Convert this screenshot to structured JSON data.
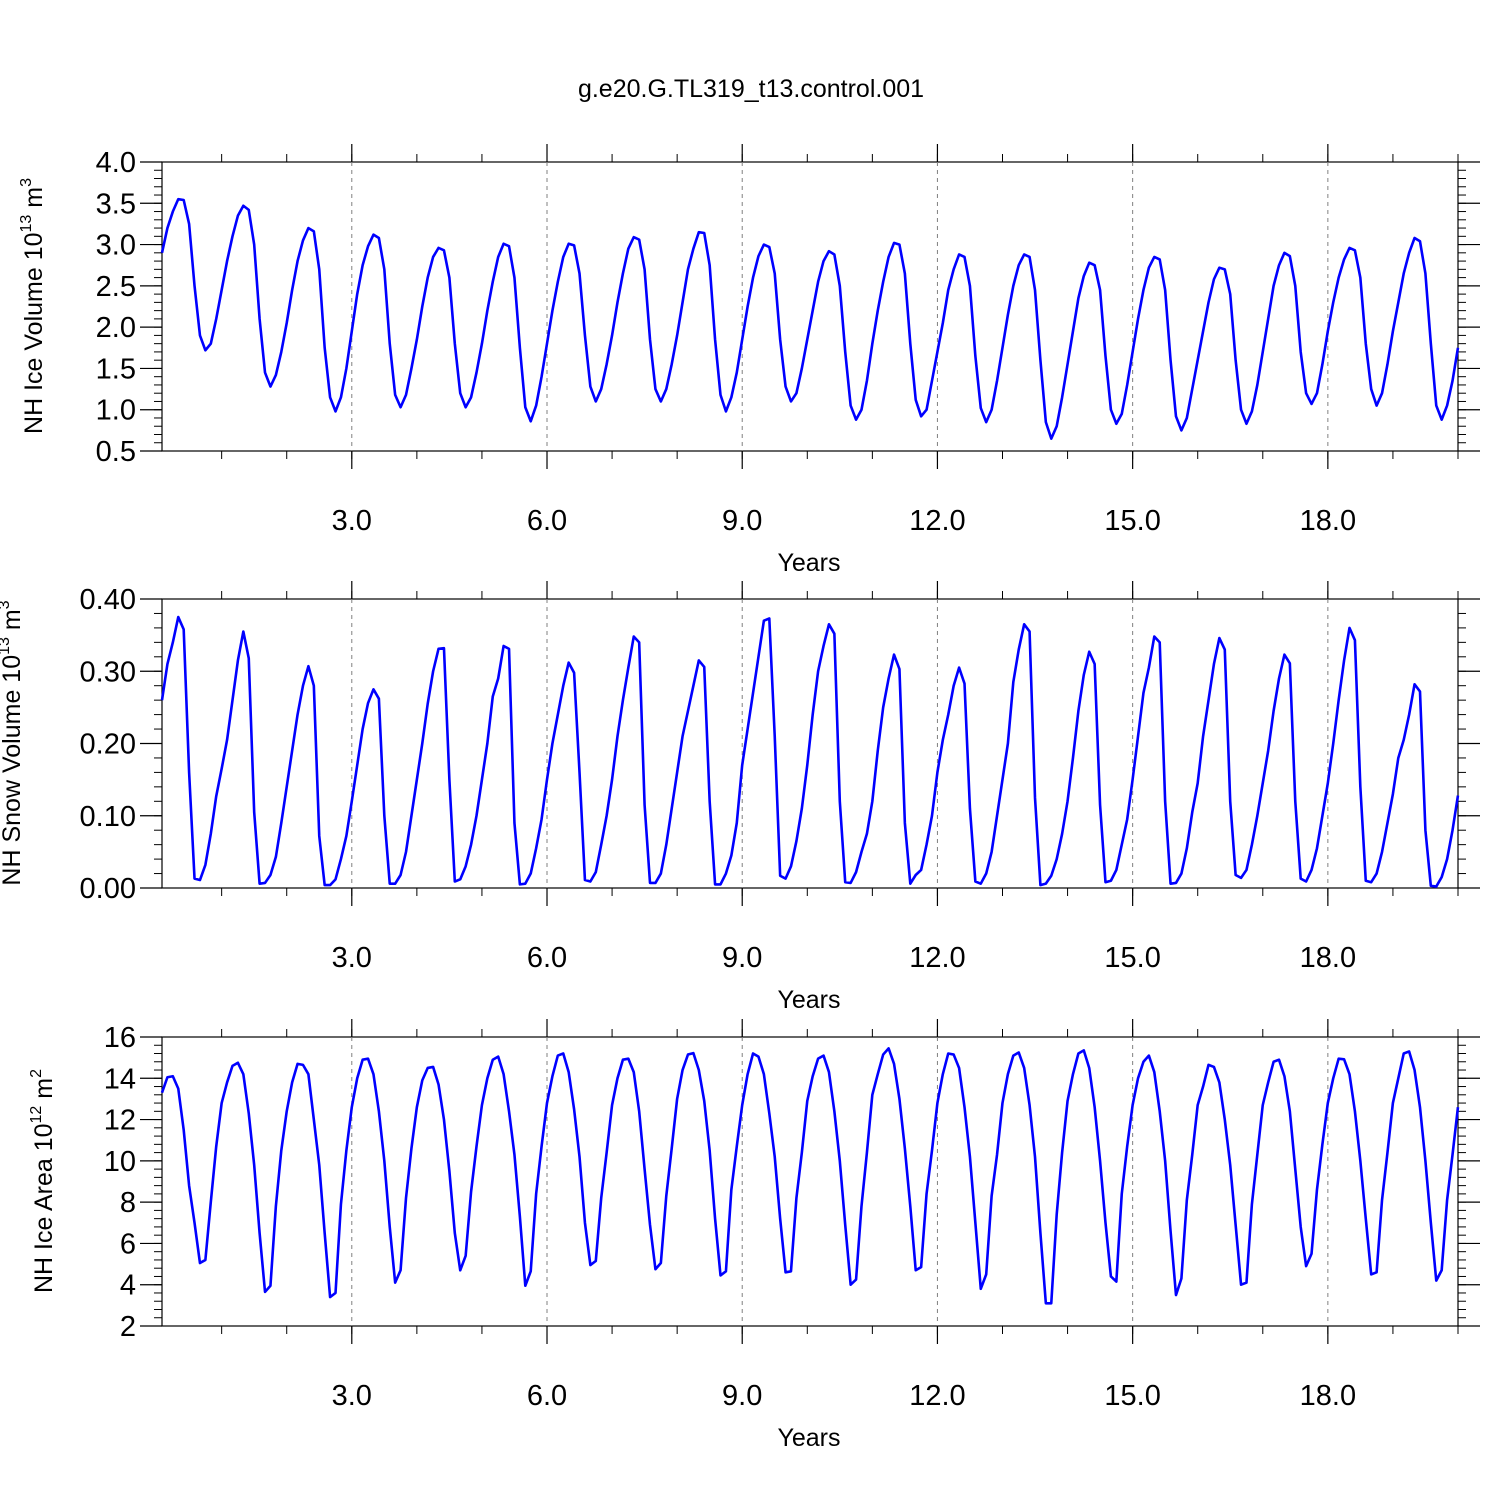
{
  "title": "g.e20.G.TL319_t13.control.001",
  "colors": {
    "series": "#0000ff",
    "axis": "#000000",
    "grid": "#808080"
  },
  "chart_data": [
    {
      "type": "line",
      "xlabel": "Years",
      "ylabel": {
        "text": "NH Ice Volume 10",
        "sup1": "13",
        "unit": " m",
        "sup2": "3"
      },
      "xlim": [
        0.0833,
        20.0
      ],
      "ylim": [
        0.5,
        4.0
      ],
      "xticks": [
        3.0,
        6.0,
        9.0,
        12.0,
        15.0,
        18.0
      ],
      "xtick_labels": [
        "3.0",
        "6.0",
        "9.0",
        "12.0",
        "15.0",
        "18.0"
      ],
      "yticks": [
        0.5,
        1.0,
        1.5,
        2.0,
        2.5,
        3.0,
        3.5,
        4.0
      ],
      "ytick_labels": [
        "0.5",
        "1.0",
        "1.5",
        "2.0",
        "2.5",
        "3.0",
        "3.5",
        "4.0"
      ],
      "grid": "vertical dashed at major x ticks",
      "x_start": 0.0833,
      "x_step": 0.08333,
      "values": [
        2.9,
        3.2,
        3.4,
        3.55,
        3.54,
        3.25,
        2.5,
        1.9,
        1.72,
        1.8,
        2.1,
        2.45,
        2.8,
        3.1,
        3.35,
        3.47,
        3.42,
        3.0,
        2.1,
        1.45,
        1.28,
        1.42,
        1.7,
        2.05,
        2.45,
        2.8,
        3.05,
        3.2,
        3.16,
        2.7,
        1.75,
        1.15,
        0.98,
        1.15,
        1.5,
        1.95,
        2.4,
        2.75,
        2.98,
        3.12,
        3.08,
        2.7,
        1.8,
        1.18,
        1.03,
        1.18,
        1.5,
        1.85,
        2.25,
        2.6,
        2.85,
        2.96,
        2.93,
        2.6,
        1.8,
        1.2,
        1.03,
        1.15,
        1.45,
        1.8,
        2.2,
        2.55,
        2.85,
        3.01,
        2.98,
        2.6,
        1.75,
        1.03,
        0.86,
        1.05,
        1.4,
        1.8,
        2.2,
        2.55,
        2.85,
        3.01,
        2.99,
        2.65,
        1.9,
        1.28,
        1.1,
        1.25,
        1.55,
        1.9,
        2.3,
        2.65,
        2.95,
        3.09,
        3.06,
        2.7,
        1.85,
        1.25,
        1.1,
        1.25,
        1.55,
        1.9,
        2.3,
        2.7,
        2.95,
        3.15,
        3.14,
        2.75,
        1.85,
        1.18,
        0.98,
        1.15,
        1.45,
        1.85,
        2.25,
        2.6,
        2.86,
        3.0,
        2.97,
        2.65,
        1.85,
        1.28,
        1.1,
        1.2,
        1.5,
        1.85,
        2.2,
        2.55,
        2.8,
        2.92,
        2.88,
        2.5,
        1.7,
        1.05,
        0.88,
        1.0,
        1.35,
        1.8,
        2.2,
        2.55,
        2.85,
        3.02,
        3.0,
        2.65,
        1.8,
        1.12,
        0.92,
        1.0,
        1.35,
        1.7,
        2.05,
        2.45,
        2.7,
        2.88,
        2.85,
        2.5,
        1.65,
        1.02,
        0.85,
        1.0,
        1.35,
        1.75,
        2.15,
        2.5,
        2.75,
        2.88,
        2.85,
        2.45,
        1.6,
        0.85,
        0.65,
        0.8,
        1.15,
        1.55,
        1.95,
        2.35,
        2.62,
        2.78,
        2.75,
        2.45,
        1.65,
        1.0,
        0.83,
        0.95,
        1.3,
        1.7,
        2.1,
        2.45,
        2.72,
        2.85,
        2.82,
        2.45,
        1.6,
        0.92,
        0.75,
        0.9,
        1.25,
        1.6,
        1.95,
        2.3,
        2.58,
        2.72,
        2.7,
        2.4,
        1.6,
        1.0,
        0.83,
        0.98,
        1.3,
        1.7,
        2.1,
        2.5,
        2.75,
        2.9,
        2.86,
        2.5,
        1.7,
        1.2,
        1.07,
        1.2,
        1.55,
        1.95,
        2.3,
        2.6,
        2.82,
        2.96,
        2.93,
        2.6,
        1.8,
        1.25,
        1.05,
        1.2,
        1.55,
        1.95,
        2.3,
        2.65,
        2.9,
        3.08,
        3.04,
        2.65,
        1.8,
        1.05,
        0.88,
        1.05,
        1.35,
        1.75
      ]
    },
    {
      "type": "line",
      "xlabel": "Years",
      "ylabel": {
        "text": "NH Snow Volume 10",
        "sup1": "13",
        "unit": " m",
        "sup2": "3"
      },
      "xlim": [
        0.0833,
        20.0
      ],
      "ylim": [
        0.0,
        0.4
      ],
      "xticks": [
        3.0,
        6.0,
        9.0,
        12.0,
        15.0,
        18.0
      ],
      "xtick_labels": [
        "3.0",
        "6.0",
        "9.0",
        "12.0",
        "15.0",
        "18.0"
      ],
      "yticks": [
        0.0,
        0.1,
        0.2,
        0.3,
        0.4
      ],
      "ytick_labels": [
        "0.00",
        "0.10",
        "0.20",
        "0.30",
        "0.40"
      ],
      "grid": "vertical dashed at major x ticks",
      "x_start": 0.0833,
      "x_step": 0.08333,
      "values": [
        0.26,
        0.31,
        0.34,
        0.375,
        0.358,
        0.16,
        0.013,
        0.011,
        0.032,
        0.075,
        0.127,
        0.165,
        0.205,
        0.26,
        0.315,
        0.355,
        0.318,
        0.105,
        0.006,
        0.007,
        0.018,
        0.043,
        0.09,
        0.14,
        0.19,
        0.24,
        0.28,
        0.307,
        0.28,
        0.072,
        0.004,
        0.004,
        0.012,
        0.04,
        0.072,
        0.12,
        0.17,
        0.22,
        0.256,
        0.275,
        0.262,
        0.1,
        0.006,
        0.006,
        0.018,
        0.05,
        0.1,
        0.15,
        0.2,
        0.255,
        0.3,
        0.331,
        0.332,
        0.15,
        0.009,
        0.012,
        0.03,
        0.06,
        0.1,
        0.15,
        0.2,
        0.265,
        0.29,
        0.335,
        0.331,
        0.09,
        0.005,
        0.006,
        0.02,
        0.055,
        0.095,
        0.15,
        0.2,
        0.24,
        0.28,
        0.312,
        0.298,
        0.16,
        0.011,
        0.009,
        0.022,
        0.06,
        0.1,
        0.15,
        0.21,
        0.26,
        0.305,
        0.348,
        0.34,
        0.115,
        0.007,
        0.007,
        0.02,
        0.06,
        0.11,
        0.16,
        0.21,
        0.245,
        0.28,
        0.315,
        0.306,
        0.12,
        0.005,
        0.005,
        0.02,
        0.045,
        0.09,
        0.17,
        0.22,
        0.27,
        0.32,
        0.37,
        0.373,
        0.21,
        0.017,
        0.013,
        0.03,
        0.065,
        0.11,
        0.17,
        0.24,
        0.3,
        0.335,
        0.365,
        0.352,
        0.12,
        0.008,
        0.007,
        0.022,
        0.05,
        0.075,
        0.12,
        0.19,
        0.25,
        0.29,
        0.323,
        0.303,
        0.09,
        0.006,
        0.018,
        0.025,
        0.06,
        0.1,
        0.16,
        0.205,
        0.24,
        0.28,
        0.305,
        0.283,
        0.11,
        0.009,
        0.006,
        0.02,
        0.05,
        0.1,
        0.15,
        0.2,
        0.285,
        0.33,
        0.365,
        0.355,
        0.125,
        0.004,
        0.006,
        0.017,
        0.04,
        0.075,
        0.12,
        0.18,
        0.245,
        0.295,
        0.327,
        0.31,
        0.115,
        0.008,
        0.01,
        0.025,
        0.06,
        0.095,
        0.15,
        0.21,
        0.27,
        0.305,
        0.348,
        0.34,
        0.12,
        0.006,
        0.007,
        0.02,
        0.055,
        0.105,
        0.145,
        0.21,
        0.26,
        0.31,
        0.346,
        0.33,
        0.12,
        0.018,
        0.014,
        0.025,
        0.06,
        0.1,
        0.145,
        0.19,
        0.245,
        0.29,
        0.323,
        0.311,
        0.12,
        0.013,
        0.009,
        0.025,
        0.055,
        0.1,
        0.145,
        0.2,
        0.26,
        0.315,
        0.36,
        0.343,
        0.14,
        0.01,
        0.008,
        0.02,
        0.05,
        0.09,
        0.13,
        0.18,
        0.205,
        0.24,
        0.282,
        0.272,
        0.08,
        0.003,
        0.002,
        0.015,
        0.04,
        0.08,
        0.128
      ]
    },
    {
      "type": "line",
      "xlabel": "Years",
      "ylabel": {
        "text": "NH Ice Area 10",
        "sup1": "12",
        "unit": " m",
        "sup2": "2"
      },
      "xlim": [
        0.0833,
        20.0
      ],
      "ylim": [
        2.0,
        16.0
      ],
      "xticks": [
        3.0,
        6.0,
        9.0,
        12.0,
        15.0,
        18.0
      ],
      "xtick_labels": [
        "3.0",
        "6.0",
        "9.0",
        "12.0",
        "15.0",
        "18.0"
      ],
      "yticks": [
        2,
        4,
        6,
        8,
        10,
        12,
        14,
        16
      ],
      "ytick_labels": [
        "2",
        "4",
        "6",
        "8",
        "10",
        "12",
        "14",
        "16"
      ],
      "grid": "vertical dashed at major x ticks",
      "x_start": 0.0833,
      "x_step": 0.08333,
      "values": [
        13.3,
        14.05,
        14.1,
        13.5,
        11.5,
        8.8,
        7.0,
        5.05,
        5.2,
        8.0,
        10.7,
        12.8,
        13.8,
        14.6,
        14.75,
        14.2,
        12.3,
        9.8,
        6.5,
        3.65,
        3.95,
        7.8,
        10.5,
        12.4,
        13.8,
        14.7,
        14.65,
        14.2,
        12.0,
        9.8,
        6.5,
        3.4,
        3.6,
        7.9,
        10.5,
        12.6,
        14.0,
        14.9,
        14.95,
        14.2,
        12.4,
        10.0,
        6.8,
        4.1,
        4.7,
        8.2,
        10.6,
        12.6,
        13.9,
        14.5,
        14.55,
        13.7,
        12.0,
        9.5,
        6.5,
        4.7,
        5.4,
        8.5,
        10.7,
        12.7,
        14.0,
        14.9,
        15.05,
        14.2,
        12.4,
        10.3,
        7.3,
        3.95,
        4.65,
        8.4,
        10.7,
        12.8,
        14.1,
        15.1,
        15.2,
        14.3,
        12.5,
        10.2,
        7.0,
        4.95,
        5.15,
        8.2,
        10.4,
        12.7,
        14.0,
        14.9,
        14.95,
        14.3,
        12.4,
        9.6,
        6.9,
        4.75,
        5.05,
        8.3,
        10.6,
        13.0,
        14.4,
        15.15,
        15.22,
        14.4,
        12.9,
        10.5,
        7.2,
        4.45,
        4.65,
        8.6,
        10.7,
        12.7,
        14.2,
        15.2,
        15.05,
        14.2,
        12.3,
        10.2,
        7.2,
        4.6,
        4.65,
        8.2,
        10.4,
        12.9,
        14.1,
        14.95,
        15.1,
        14.3,
        12.4,
        10.0,
        6.9,
        4.0,
        4.25,
        7.8,
        10.4,
        13.2,
        14.2,
        15.15,
        15.45,
        14.7,
        13.0,
        10.6,
        7.8,
        4.7,
        4.85,
        8.4,
        10.5,
        12.8,
        14.2,
        15.2,
        15.15,
        14.5,
        12.6,
        10.2,
        7.0,
        3.8,
        4.5,
        8.3,
        10.3,
        12.8,
        14.2,
        15.1,
        15.25,
        14.5,
        12.7,
        10.2,
        6.5,
        3.1,
        3.1,
        7.4,
        10.4,
        12.9,
        14.2,
        15.2,
        15.35,
        14.5,
        12.6,
        10.0,
        7.0,
        4.4,
        4.15,
        8.4,
        10.7,
        12.7,
        14.0,
        14.8,
        15.1,
        14.3,
        12.4,
        10.0,
        6.6,
        3.5,
        4.3,
        8.1,
        10.3,
        12.7,
        13.6,
        14.65,
        14.55,
        13.8,
        12.0,
        9.8,
        6.9,
        4.0,
        4.1,
        7.9,
        10.3,
        12.7,
        13.8,
        14.8,
        14.9,
        14.1,
        12.4,
        9.6,
        6.8,
        4.9,
        5.5,
        8.6,
        10.8,
        12.8,
        14.0,
        14.95,
        14.92,
        14.2,
        12.4,
        10.0,
        7.2,
        4.5,
        4.6,
        8.1,
        10.4,
        12.8,
        14.0,
        15.2,
        15.3,
        14.4,
        12.6,
        10.0,
        7.0,
        4.2,
        4.7,
        8.1,
        10.3,
        12.6
      ]
    }
  ]
}
